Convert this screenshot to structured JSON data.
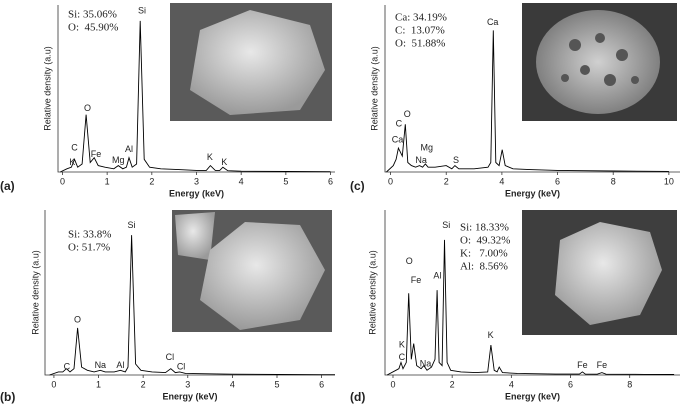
{
  "chart_data": [
    {
      "type": "line",
      "panel": "(a)",
      "xlabel": "Energy (keV)",
      "ylabel": "Relative density (a.u)",
      "color": "#000000",
      "composition": [
        "Si: 35.06%",
        "O:  45.90%"
      ],
      "xlim": [
        -0.1,
        6.1
      ],
      "ylim": [
        0,
        105
      ],
      "xticks": [
        0,
        1,
        2,
        3,
        4,
        5,
        6
      ],
      "x": [
        -0.05,
        0.1,
        0.2,
        0.27,
        0.34,
        0.44,
        0.53,
        0.62,
        0.71,
        0.8,
        0.95,
        1.15,
        1.25,
        1.35,
        1.43,
        1.49,
        1.56,
        1.66,
        1.74,
        1.83,
        1.95,
        2.2,
        2.6,
        3.0,
        3.22,
        3.31,
        3.42,
        3.52,
        3.59,
        3.7,
        4.0,
        5.0,
        6.0
      ],
      "values": [
        0,
        2,
        3,
        8,
        3,
        5,
        36,
        6,
        9,
        4,
        3,
        2,
        4,
        2,
        3,
        9,
        3,
        5,
        95,
        8,
        3,
        2,
        1.5,
        1,
        1,
        4,
        1,
        1,
        3,
        0.8,
        0.5,
        0.3,
        0.2
      ],
      "peaks": [
        {
          "label": "C",
          "x": 0.27,
          "y": 15
        },
        {
          "label": "K",
          "x": 0.22,
          "y": 6
        },
        {
          "label": "O",
          "x": 0.56,
          "y": 40
        },
        {
          "label": "Fe",
          "x": 0.75,
          "y": 11
        },
        {
          "label": "Mg",
          "x": 1.25,
          "y": 7
        },
        {
          "label": "Al",
          "x": 1.49,
          "y": 14
        },
        {
          "label": "Si",
          "x": 1.78,
          "y": 101
        },
        {
          "label": "K",
          "x": 3.3,
          "y": 9
        },
        {
          "label": "K",
          "x": 3.62,
          "y": 6
        }
      ]
    },
    {
      "type": "line",
      "panel": "(b)",
      "xlabel": "Energy (keV)",
      "ylabel": "Relative density (a.u)",
      "color": "#000000",
      "composition": [
        "Si: 33.8%",
        "O: 51.7%"
      ],
      "xlim": [
        -0.2,
        6.3
      ],
      "ylim": [
        0,
        105
      ],
      "xticks": [
        0,
        1,
        2,
        3,
        4,
        5,
        6
      ],
      "x": [
        -0.1,
        0.1,
        0.2,
        0.28,
        0.36,
        0.45,
        0.53,
        0.62,
        0.75,
        0.9,
        1.04,
        1.15,
        1.35,
        1.49,
        1.6,
        1.66,
        1.74,
        1.83,
        1.95,
        2.2,
        2.5,
        2.62,
        2.72,
        2.82,
        2.95,
        3.3,
        4,
        5,
        6,
        6.3
      ],
      "values": [
        0,
        2,
        2,
        4,
        2,
        4,
        30,
        5,
        3,
        2,
        3,
        2,
        2,
        3,
        2,
        5,
        89,
        7,
        3,
        2,
        1.5,
        4,
        1.5,
        2,
        1,
        0.8,
        0.5,
        0.3,
        0.2,
        0.2
      ],
      "peaks": [
        {
          "label": "C",
          "x": 0.29,
          "y": 5
        },
        {
          "label": "O",
          "x": 0.53,
          "y": 35
        },
        {
          "label": "Na",
          "x": 1.04,
          "y": 6
        },
        {
          "label": "Al",
          "x": 1.49,
          "y": 6
        },
        {
          "label": "Si",
          "x": 1.74,
          "y": 95
        },
        {
          "label": "Cl",
          "x": 2.6,
          "y": 11
        },
        {
          "label": "Cl",
          "x": 2.85,
          "y": 5
        }
      ]
    },
    {
      "type": "line",
      "panel": "(c)",
      "xlabel": "Energy (keV)",
      "ylabel": "Relative density (a.u)",
      "color": "#000000",
      "composition": [
        "Ca: 34.19%",
        "C:  13.07%",
        "O:  51.88%"
      ],
      "xlim": [
        -0.2,
        10.4
      ],
      "ylim": [
        0,
        105
      ],
      "xticks": [
        0,
        2,
        4,
        6,
        8,
        10
      ],
      "x": [
        -0.15,
        0.1,
        0.2,
        0.28,
        0.34,
        0.42,
        0.53,
        0.62,
        0.75,
        0.9,
        1.04,
        1.15,
        1.25,
        1.35,
        1.6,
        2.0,
        2.2,
        2.31,
        2.45,
        3.0,
        3.5,
        3.6,
        3.69,
        3.78,
        3.9,
        4.01,
        4.12,
        4.4,
        5,
        6,
        8,
        10
      ],
      "values": [
        0,
        4,
        8,
        15,
        13,
        10,
        30,
        6,
        4,
        3,
        4,
        3,
        5,
        3,
        3,
        4,
        2,
        4,
        2,
        2,
        3,
        6,
        89,
        6,
        4,
        14,
        4,
        2,
        1.5,
        1,
        0.6,
        0.4
      ],
      "peaks": [
        {
          "label": "C",
          "x": 0.3,
          "y": 30
        },
        {
          "label": "Ca",
          "x": 0.25,
          "y": 20
        },
        {
          "label": "O",
          "x": 0.6,
          "y": 36
        },
        {
          "label": "Mg",
          "x": 1.3,
          "y": 15
        },
        {
          "label": "Na",
          "x": 1.1,
          "y": 7
        },
        {
          "label": "S",
          "x": 2.35,
          "y": 7
        },
        {
          "label": "Ca",
          "x": 3.67,
          "y": 94
        }
      ]
    },
    {
      "type": "line",
      "panel": "(d)",
      "xlabel": "Energy (keV)",
      "ylabel": "Relative density (a.u)",
      "color": "#000000",
      "composition": [
        "Si: 18.33%",
        "O:  49.32%",
        "K:   7.00%",
        "Al:  8.56%"
      ],
      "xlim": [
        -0.27,
        9.7
      ],
      "ylim": [
        0,
        105
      ],
      "xticks": [
        0,
        2,
        4,
        6,
        8
      ],
      "x": [
        -0.2,
        0.1,
        0.2,
        0.27,
        0.34,
        0.45,
        0.53,
        0.62,
        0.7,
        0.8,
        0.95,
        1.04,
        1.15,
        1.3,
        1.42,
        1.49,
        1.56,
        1.66,
        1.74,
        1.83,
        1.95,
        2.3,
        2.8,
        3.2,
        3.31,
        3.42,
        3.52,
        3.59,
        3.7,
        4.2,
        5.5,
        6.3,
        6.4,
        6.5,
        6.9,
        7.06,
        7.2,
        8.5,
        9.5
      ],
      "values": [
        0,
        3,
        4,
        8,
        4,
        8,
        52,
        10,
        20,
        6,
        4,
        6,
        3,
        5,
        10,
        54,
        8,
        6,
        86,
        8,
        3,
        2,
        1.5,
        2,
        19,
        3,
        2,
        5,
        1.5,
        1,
        0.6,
        0.6,
        2,
        0.6,
        0.5,
        1.5,
        0.5,
        0.4,
        0.3
      ],
      "peaks": [
        {
          "label": "K",
          "x": 0.3,
          "y": 19
        },
        {
          "label": "C",
          "x": 0.3,
          "y": 11
        },
        {
          "label": "O",
          "x": 0.55,
          "y": 72
        },
        {
          "label": "Fe",
          "x": 0.78,
          "y": 60
        },
        {
          "label": "Na",
          "x": 1.1,
          "y": 7
        },
        {
          "label": "Al",
          "x": 1.5,
          "y": 63
        },
        {
          "label": "Si",
          "x": 1.8,
          "y": 95
        },
        {
          "label": "K",
          "x": 3.3,
          "y": 25
        },
        {
          "label": "Fe",
          "x": 6.4,
          "y": 6
        },
        {
          "label": "Fe",
          "x": 7.06,
          "y": 6
        }
      ]
    }
  ]
}
